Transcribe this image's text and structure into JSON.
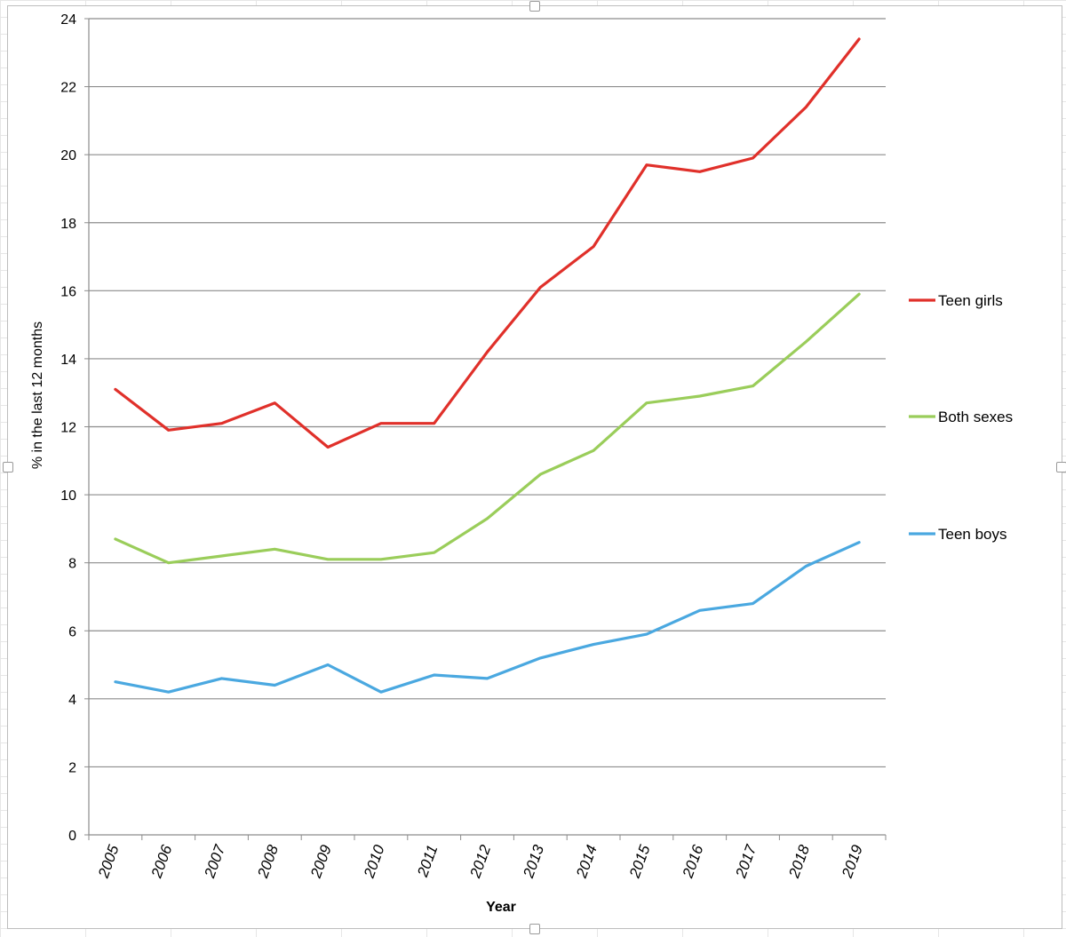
{
  "chart_data": {
    "type": "line",
    "title": "",
    "xlabel": "Year",
    "ylabel": "% in the last 12 months",
    "categories": [
      "2005",
      "2006",
      "2007",
      "2008",
      "2009",
      "2010",
      "2011",
      "2012",
      "2013",
      "2014",
      "2015",
      "2016",
      "2017",
      "2018",
      "2019"
    ],
    "ylim": [
      0,
      24
    ],
    "yticks": [
      "0",
      "2",
      "4",
      "6",
      "8",
      "10",
      "12",
      "14",
      "16",
      "18",
      "20",
      "22",
      "24"
    ],
    "grid": true,
    "legend_position": "right",
    "series": [
      {
        "name": "Teen girls",
        "color": "#e0302a",
        "values": [
          13.1,
          11.9,
          12.1,
          12.7,
          11.4,
          12.1,
          12.1,
          14.2,
          16.1,
          17.3,
          19.7,
          19.5,
          19.9,
          21.4,
          23.4
        ]
      },
      {
        "name": "Both sexes",
        "color": "#9acd5a",
        "values": [
          8.7,
          8.0,
          8.2,
          8.4,
          8.1,
          8.1,
          8.3,
          9.3,
          10.6,
          11.3,
          12.7,
          12.9,
          13.2,
          14.5,
          15.9
        ]
      },
      {
        "name": "Teen boys",
        "color": "#4aa8e0",
        "values": [
          4.5,
          4.2,
          4.6,
          4.4,
          5.0,
          4.2,
          4.7,
          4.6,
          5.2,
          5.6,
          5.9,
          6.6,
          6.8,
          7.9,
          8.6
        ]
      }
    ]
  }
}
